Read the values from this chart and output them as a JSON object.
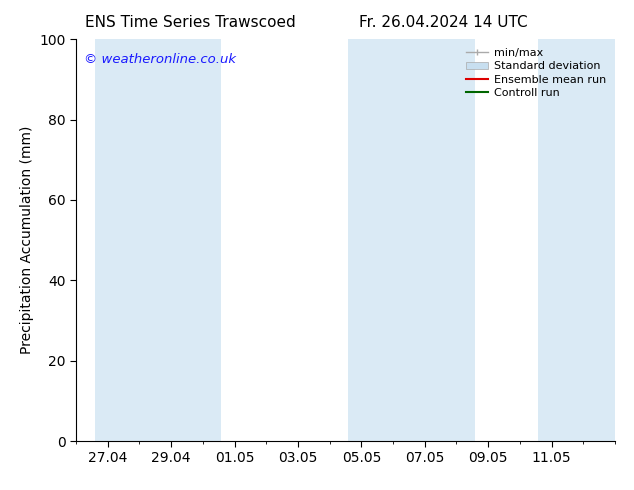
{
  "title_left": "ENS Time Series Trawscoed",
  "title_right": "Fr. 26.04.2024 14 UTC",
  "ylabel": "Precipitation Accumulation (mm)",
  "ylim": [
    0,
    100
  ],
  "yticks": [
    0,
    20,
    40,
    60,
    80,
    100
  ],
  "background_color": "#ffffff",
  "plot_bg_color": "#ffffff",
  "watermark": "© weatheronline.co.uk",
  "watermark_color": "#1a1aff",
  "shaded_band_color": "#daeaf5",
  "x_tick_labels": [
    "27.04",
    "29.04",
    "01.05",
    "03.05",
    "05.05",
    "07.05",
    "09.05",
    "11.05"
  ],
  "x_start": "2024-04-26",
  "x_end": "2024-05-13",
  "shaded_ranges": [
    [
      "2024-04-26 14:00",
      "2024-04-28 14:00"
    ],
    [
      "2024-04-28 14:00",
      "2024-04-30 14:00"
    ],
    [
      "2024-05-04 14:00",
      "2024-05-06 14:00"
    ],
    [
      "2024-05-06 14:00",
      "2024-05-08 14:00"
    ],
    [
      "2024-05-10 14:00",
      "2024-05-13 14:00"
    ]
  ],
  "legend_minmax_color": "#aaaaaa",
  "legend_stddev_color": "#c8dff0",
  "legend_ensemble_color": "#dd0000",
  "legend_control_color": "#006600",
  "grid_color": "#cccccc",
  "tick_color": "#000000",
  "font_size": 10,
  "title_font_size": 11
}
